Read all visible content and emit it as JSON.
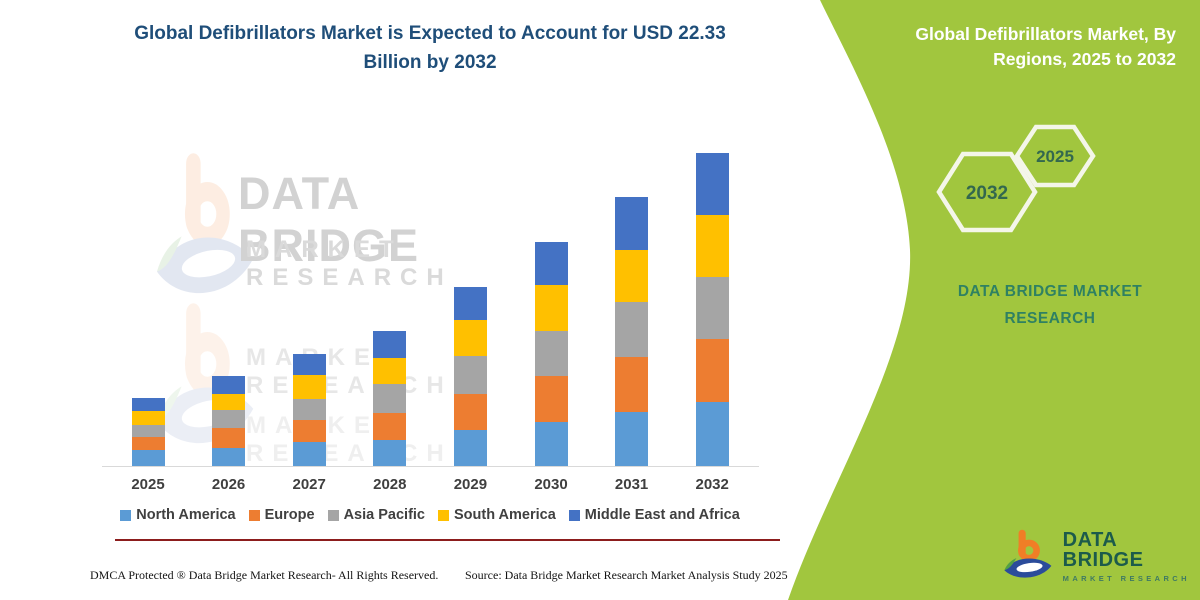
{
  "colors": {
    "panel_green": "#a1c63e",
    "title_blue": "#1f4e79",
    "red_line": "#8c1d1d",
    "hexagon_border": "#f4f6e9",
    "hexagon_text": "#33684e",
    "brand_green": "#2f8162",
    "axis_label": "#3f3f3f"
  },
  "chart_data": {
    "type": "bar",
    "stacked": true,
    "title": "Global Defibrillators Market is Expected to Account for USD 22.33 Billion by 2032",
    "unit": "USD Billion",
    "categories": [
      "2025",
      "2026",
      "2027",
      "2028",
      "2029",
      "2030",
      "2031",
      "2032"
    ],
    "series": [
      {
        "name": "North America",
        "color": "#5B9BD5",
        "values": [
          1.14,
          1.31,
          1.73,
          1.83,
          2.59,
          3.12,
          3.83,
          4.55
        ]
      },
      {
        "name": "Europe",
        "color": "#ED7D31",
        "values": [
          0.91,
          1.43,
          1.52,
          1.98,
          2.55,
          3.33,
          3.92,
          4.51
        ]
      },
      {
        "name": "Asia Pacific",
        "color": "#A5A5A5",
        "values": [
          0.9,
          1.23,
          1.5,
          2.02,
          2.69,
          3.21,
          3.92,
          4.41
        ]
      },
      {
        "name": "South America",
        "color": "#FFC000",
        "values": [
          0.98,
          1.19,
          1.73,
          1.9,
          2.59,
          3.28,
          3.73,
          4.44
        ]
      },
      {
        "name": "Middle East and Africa",
        "color": "#4472C4",
        "values": [
          0.93,
          1.26,
          1.52,
          1.9,
          2.38,
          3.02,
          3.8,
          4.42
        ]
      }
    ],
    "totals_by_year": [
      4.86,
      6.42,
      8.0,
      9.63,
      12.8,
      15.96,
      19.2,
      22.33
    ],
    "xlabel": "",
    "ylabel": "",
    "ylim": [
      0,
      24
    ],
    "grid": false,
    "y_axis_visible": false,
    "legend_position": "bottom"
  },
  "watermark": {
    "line1": "DATA BRIDGE",
    "line2": "MARKET RESEARCH"
  },
  "footer": {
    "dmca": "DMCA Protected ® Data Bridge Market Research-  All Rights Reserved.",
    "source": "Source: Data Bridge Market Research  Market Analysis Study 2025"
  },
  "right_panel": {
    "title": "Global Defibrillators Market, By Regions, 2025 to 2032",
    "hexagons": [
      "2032",
      "2025"
    ],
    "brand": "DATA BRIDGE MARKET RESEARCH"
  },
  "logo": {
    "name": "DATA BRIDGE",
    "tagline": "MARKET RESEARCH"
  }
}
